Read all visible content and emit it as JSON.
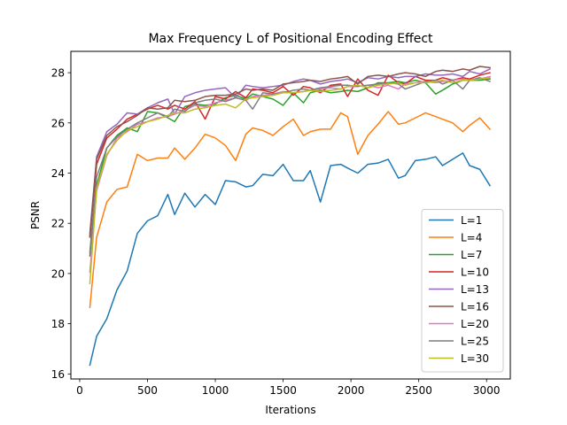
{
  "chart_data": {
    "type": "line",
    "title": "Max Frequency L of Positional Encoding Effect",
    "xlabel": "Iterations",
    "ylabel": "PSNR",
    "xlim": [
      -65,
      3175
    ],
    "ylim": [
      15.8,
      28.85
    ],
    "xticks": [
      0,
      500,
      1000,
      1500,
      2000,
      2500,
      3000
    ],
    "yticks": [
      16,
      18,
      20,
      22,
      24,
      26,
      28
    ],
    "grid": false,
    "legend_position": "lower-right",
    "x": [
      75,
      125,
      200,
      275,
      350,
      425,
      500,
      575,
      650,
      700,
      775,
      850,
      925,
      1000,
      1075,
      1150,
      1225,
      1275,
      1350,
      1425,
      1500,
      1575,
      1650,
      1700,
      1775,
      1850,
      1925,
      1975,
      2050,
      2125,
      2200,
      2275,
      2350,
      2400,
      2475,
      2550,
      2625,
      2675,
      2750,
      2825,
      2875,
      2950,
      3025
    ],
    "series": [
      {
        "name": "L=1",
        "color": "#1f77b4",
        "values": [
          16.35,
          17.5,
          18.2,
          19.35,
          20.1,
          21.6,
          22.1,
          22.3,
          23.15,
          22.35,
          23.2,
          22.65,
          23.15,
          22.75,
          23.7,
          23.65,
          23.45,
          23.5,
          23.95,
          23.9,
          24.35,
          23.7,
          23.7,
          24.1,
          22.85,
          24.3,
          24.35,
          24.2,
          24.0,
          24.35,
          24.4,
          24.55,
          23.8,
          23.9,
          24.5,
          24.55,
          24.65,
          24.3,
          24.55,
          24.8,
          24.3,
          24.15,
          23.5
        ]
      },
      {
        "name": "L=4",
        "color": "#ff7f0e",
        "values": [
          18.65,
          21.45,
          22.85,
          23.35,
          23.45,
          24.75,
          24.5,
          24.6,
          24.6,
          25.0,
          24.55,
          25.0,
          25.55,
          25.4,
          25.1,
          24.5,
          25.55,
          25.8,
          25.7,
          25.5,
          25.85,
          26.15,
          25.5,
          25.65,
          25.75,
          25.75,
          26.4,
          26.25,
          24.75,
          25.5,
          25.95,
          26.45,
          25.95,
          26.0,
          26.2,
          26.4,
          26.25,
          26.15,
          26.0,
          25.65,
          25.9,
          26.2,
          25.75
        ]
      },
      {
        "name": "L=7",
        "color": "#2ca02c",
        "values": [
          20.7,
          23.5,
          25.0,
          25.5,
          25.8,
          25.65,
          26.45,
          26.4,
          26.2,
          26.05,
          26.65,
          26.75,
          26.7,
          26.75,
          27.0,
          27.1,
          26.95,
          27.15,
          27.05,
          26.95,
          26.7,
          27.2,
          26.8,
          27.2,
          27.3,
          27.2,
          27.25,
          27.3,
          27.25,
          27.4,
          27.6,
          27.6,
          27.65,
          27.6,
          27.7,
          27.6,
          27.15,
          27.3,
          27.55,
          27.7,
          27.7,
          27.7,
          27.75
        ]
      },
      {
        "name": "L=10",
        "color": "#d62728",
        "values": [
          21.45,
          24.35,
          25.4,
          25.75,
          26.15,
          26.35,
          26.55,
          26.7,
          26.55,
          26.7,
          26.55,
          26.85,
          26.15,
          27.05,
          26.95,
          27.25,
          27.0,
          27.35,
          27.3,
          27.2,
          27.45,
          27.1,
          27.45,
          27.4,
          27.2,
          27.5,
          27.55,
          27.05,
          27.75,
          27.3,
          27.1,
          27.9,
          27.6,
          27.55,
          27.85,
          27.7,
          27.7,
          27.8,
          27.7,
          27.8,
          27.75,
          27.9,
          28.0
        ]
      },
      {
        "name": "L=13",
        "color": "#9467bd",
        "values": [
          21.6,
          24.65,
          25.65,
          25.95,
          26.4,
          26.35,
          26.6,
          26.8,
          26.95,
          26.35,
          27.05,
          27.2,
          27.3,
          27.35,
          27.4,
          27.0,
          27.5,
          27.45,
          27.4,
          27.45,
          27.5,
          27.65,
          27.75,
          27.7,
          27.55,
          27.65,
          27.7,
          27.75,
          27.6,
          27.8,
          27.75,
          27.85,
          27.8,
          27.85,
          27.85,
          27.95,
          27.9,
          27.9,
          27.95,
          27.85,
          28.05,
          27.95,
          28.15
        ]
      },
      {
        "name": "L=16",
        "color": "#8c564b",
        "values": [
          21.5,
          24.55,
          25.5,
          25.85,
          26.05,
          26.3,
          26.6,
          26.55,
          26.6,
          26.9,
          26.85,
          26.9,
          27.05,
          27.1,
          27.1,
          27.15,
          27.35,
          27.3,
          27.35,
          27.3,
          27.55,
          27.6,
          27.65,
          27.7,
          27.65,
          27.75,
          27.8,
          27.85,
          27.55,
          27.85,
          27.9,
          27.85,
          27.95,
          28.0,
          27.95,
          27.85,
          28.05,
          28.1,
          28.05,
          28.15,
          28.1,
          28.25,
          28.2
        ]
      },
      {
        "name": "L=20",
        "color": "#e377c2",
        "values": [
          20.05,
          23.3,
          24.7,
          25.4,
          25.65,
          25.95,
          26.05,
          26.2,
          26.25,
          26.35,
          26.5,
          26.7,
          26.65,
          26.8,
          26.9,
          27.0,
          26.9,
          27.05,
          27.1,
          27.15,
          27.25,
          27.2,
          27.25,
          27.3,
          27.35,
          27.4,
          27.35,
          27.45,
          27.45,
          27.5,
          27.4,
          27.5,
          27.35,
          27.55,
          27.6,
          27.65,
          27.6,
          27.65,
          27.7,
          27.75,
          27.7,
          27.75,
          27.85
        ]
      },
      {
        "name": "L=25",
        "color": "#7f7f7f",
        "values": [
          20.85,
          23.85,
          25.0,
          25.45,
          25.75,
          26.0,
          26.2,
          26.4,
          26.25,
          26.55,
          26.45,
          26.8,
          26.9,
          26.95,
          26.85,
          27.0,
          26.9,
          26.55,
          27.2,
          27.15,
          27.2,
          27.3,
          27.35,
          27.3,
          27.4,
          27.45,
          27.5,
          27.5,
          27.45,
          27.5,
          27.55,
          27.6,
          27.55,
          27.35,
          27.5,
          27.65,
          27.7,
          27.55,
          27.7,
          27.35,
          27.7,
          27.8,
          27.65
        ]
      },
      {
        "name": "L=30",
        "color": "#bcbd22",
        "values": [
          19.6,
          23.4,
          24.75,
          25.3,
          25.7,
          25.85,
          26.05,
          26.15,
          26.3,
          26.4,
          26.4,
          26.55,
          26.6,
          26.7,
          26.75,
          26.6,
          26.95,
          27.0,
          27.05,
          27.1,
          27.2,
          27.2,
          27.25,
          27.3,
          27.25,
          27.3,
          27.35,
          27.45,
          27.5,
          27.4,
          27.5,
          27.55,
          27.6,
          27.5,
          27.6,
          27.6,
          27.65,
          27.7,
          27.6,
          27.7,
          27.7,
          27.75,
          27.8
        ]
      }
    ]
  }
}
